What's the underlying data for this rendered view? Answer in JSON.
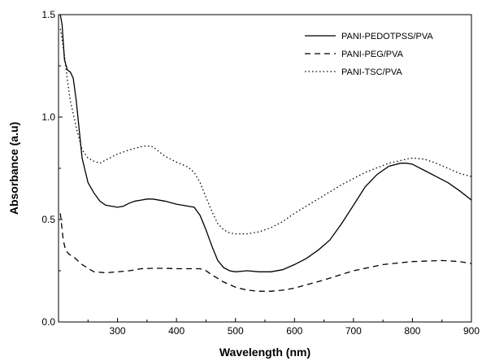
{
  "chart_data": {
    "type": "line",
    "title": "",
    "xlabel": "Wavelength (nm)",
    "ylabel": "Absorbance (a.u)",
    "xlim": [
      200,
      900
    ],
    "ylim": [
      0.0,
      1.5
    ],
    "x_ticks": [
      300,
      400,
      500,
      600,
      700,
      800,
      900
    ],
    "x_tick_labels": [
      "300",
      "400",
      "500",
      "600",
      "700",
      "800",
      "900"
    ],
    "y_ticks": [
      0.0,
      0.5,
      1.0,
      1.5
    ],
    "y_tick_labels": [
      "0.0",
      "0.5",
      "1.0",
      "1.5"
    ],
    "grid": false,
    "legend_position": "top-right",
    "series": [
      {
        "name": "PANI-PEDOTPSS/PVA",
        "line_style": "solid",
        "color": "#000000",
        "x": [
          203,
          206,
          210,
          215,
          220,
          225,
          230,
          240,
          250,
          260,
          270,
          280,
          290,
          300,
          310,
          320,
          330,
          340,
          350,
          360,
          380,
          400,
          420,
          430,
          440,
          450,
          460,
          470,
          480,
          490,
          500,
          520,
          540,
          560,
          580,
          600,
          620,
          640,
          660,
          680,
          700,
          720,
          740,
          760,
          780,
          790,
          800,
          820,
          840,
          860,
          880,
          900
        ],
        "y": [
          1.5,
          1.45,
          1.28,
          1.23,
          1.22,
          1.19,
          1.08,
          0.8,
          0.68,
          0.63,
          0.59,
          0.57,
          0.565,
          0.56,
          0.565,
          0.58,
          0.59,
          0.595,
          0.6,
          0.6,
          0.59,
          0.575,
          0.565,
          0.56,
          0.52,
          0.45,
          0.37,
          0.3,
          0.265,
          0.25,
          0.245,
          0.25,
          0.245,
          0.245,
          0.255,
          0.28,
          0.31,
          0.35,
          0.4,
          0.48,
          0.57,
          0.66,
          0.72,
          0.76,
          0.775,
          0.775,
          0.77,
          0.74,
          0.71,
          0.68,
          0.64,
          0.595
        ]
      },
      {
        "name": "PANI-PEG/PVA",
        "line_style": "dashed",
        "color": "#000000",
        "x": [
          203,
          205,
          208,
          212,
          218,
          225,
          240,
          260,
          280,
          300,
          320,
          340,
          360,
          380,
          400,
          420,
          440,
          450,
          460,
          480,
          500,
          520,
          540,
          560,
          580,
          600,
          650,
          700,
          750,
          800,
          850,
          880,
          900
        ],
        "y": [
          0.53,
          0.48,
          0.4,
          0.35,
          0.33,
          0.32,
          0.28,
          0.245,
          0.24,
          0.245,
          0.25,
          0.26,
          0.262,
          0.262,
          0.26,
          0.26,
          0.26,
          0.25,
          0.23,
          0.195,
          0.17,
          0.155,
          0.15,
          0.15,
          0.155,
          0.165,
          0.205,
          0.25,
          0.28,
          0.295,
          0.3,
          0.295,
          0.285
        ]
      },
      {
        "name": "PANI-TSC/PVA",
        "line_style": "dotted",
        "color": "#000000",
        "x": [
          203,
          206,
          210,
          215,
          220,
          230,
          240,
          250,
          260,
          270,
          280,
          300,
          320,
          340,
          350,
          360,
          380,
          400,
          420,
          430,
          440,
          450,
          460,
          470,
          480,
          490,
          500,
          520,
          540,
          560,
          580,
          600,
          640,
          680,
          720,
          760,
          790,
          800,
          820,
          840,
          860,
          880,
          900
        ],
        "y": [
          1.43,
          1.38,
          1.3,
          1.18,
          1.08,
          0.95,
          0.84,
          0.8,
          0.785,
          0.775,
          0.79,
          0.82,
          0.84,
          0.855,
          0.86,
          0.855,
          0.81,
          0.78,
          0.755,
          0.73,
          0.68,
          0.61,
          0.54,
          0.48,
          0.45,
          0.435,
          0.43,
          0.43,
          0.44,
          0.46,
          0.49,
          0.53,
          0.6,
          0.67,
          0.73,
          0.775,
          0.795,
          0.8,
          0.795,
          0.775,
          0.75,
          0.725,
          0.71
        ]
      }
    ]
  }
}
